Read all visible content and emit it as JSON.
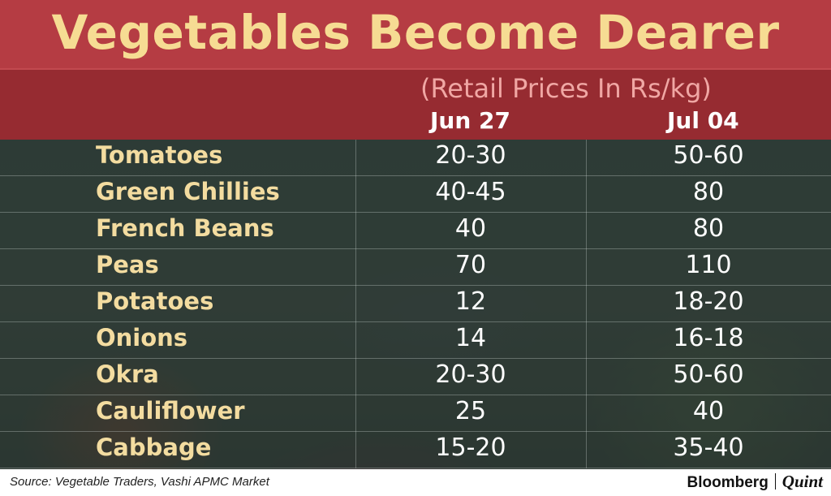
{
  "chart_data": {
    "type": "table",
    "title": "Vegetables Become Dearer",
    "subtitle": "(Retail Prices In Rs/kg)",
    "columns": [
      "Jun 27",
      "Jul 04"
    ],
    "rows": [
      {
        "name": "Tomatoes",
        "values": [
          "20-30",
          "50-60"
        ]
      },
      {
        "name": "Green Chillies",
        "values": [
          "40-45",
          "80"
        ]
      },
      {
        "name": "French Beans",
        "values": [
          "40",
          "80"
        ]
      },
      {
        "name": "Peas",
        "values": [
          "70",
          "110"
        ]
      },
      {
        "name": "Potatoes",
        "values": [
          "12",
          "18-20"
        ]
      },
      {
        "name": "Onions",
        "values": [
          "14",
          "16-18"
        ]
      },
      {
        "name": "Okra",
        "values": [
          "20-30",
          "50-60"
        ]
      },
      {
        "name": "Cauliflower",
        "values": [
          "25",
          "40"
        ]
      },
      {
        "name": "Cabbage",
        "values": [
          "15-20",
          "35-40"
        ]
      }
    ]
  },
  "footer": {
    "source": "Source: Vegetable Traders, Vashi APMC Market",
    "brand_left": "Bloomberg",
    "brand_right": "Quint"
  }
}
